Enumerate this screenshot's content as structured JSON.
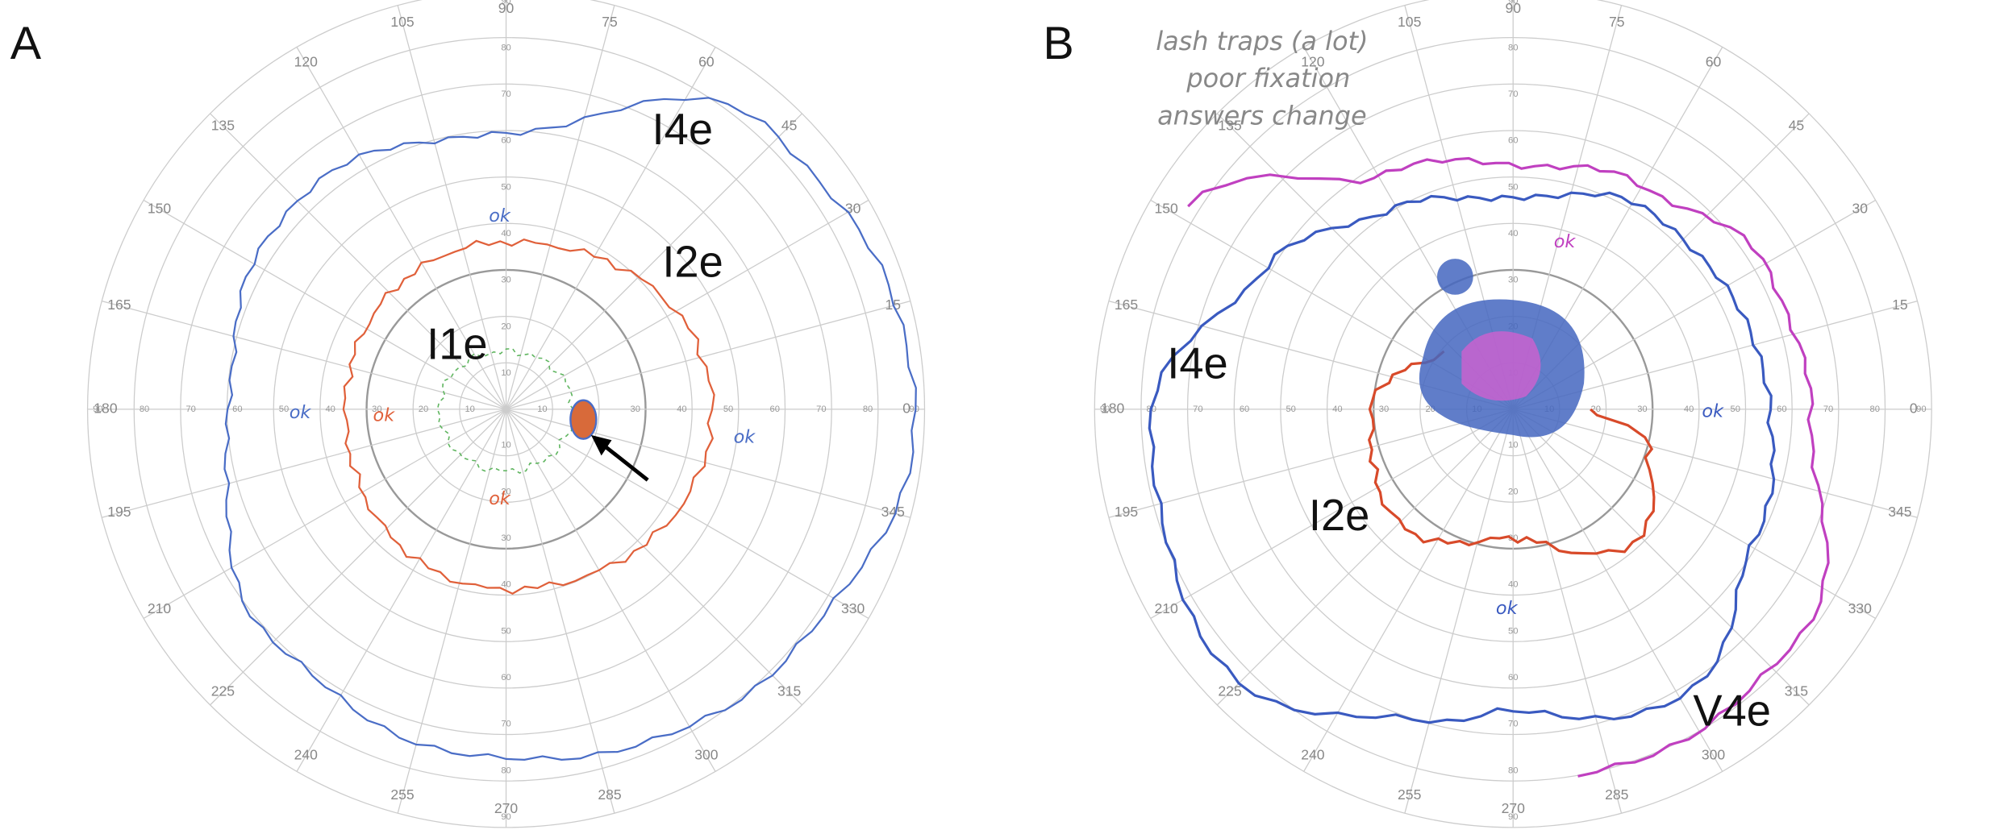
{
  "panels": [
    {
      "label": "A",
      "angle_labels": [
        "0",
        "15",
        "30",
        "45",
        "60",
        "75",
        "90",
        "105",
        "120",
        "135",
        "150",
        "165",
        "180",
        "195",
        "210",
        "225",
        "240",
        "255",
        "270",
        "285",
        "300",
        "315",
        "330",
        "345"
      ],
      "ring_labels": [
        "10",
        "20",
        "30",
        "40",
        "50",
        "60",
        "70",
        "80",
        "90"
      ],
      "isopters": [
        {
          "label": "I4e"
        },
        {
          "label": "I2e"
        },
        {
          "label": "I1e"
        }
      ],
      "notes": [
        "ok",
        "ok",
        "ok",
        "ok",
        "ok"
      ]
    },
    {
      "label": "B",
      "angle_labels": [
        "0",
        "15",
        "30",
        "45",
        "60",
        "75",
        "90",
        "105",
        "120",
        "135",
        "150",
        "165",
        "180",
        "195",
        "210",
        "225",
        "240",
        "255",
        "270",
        "285",
        "300",
        "315",
        "330",
        "345"
      ],
      "ring_labels": [
        "10",
        "20",
        "30",
        "40",
        "50",
        "60",
        "70",
        "80",
        "90"
      ],
      "isopters": [
        {
          "label": "I4e"
        },
        {
          "label": "I2e"
        },
        {
          "label": "V4e"
        }
      ],
      "notes": [
        "lash traps (a lot)",
        "poor fixation",
        "answers change",
        "ok",
        "ok",
        "ok"
      ]
    }
  ]
}
